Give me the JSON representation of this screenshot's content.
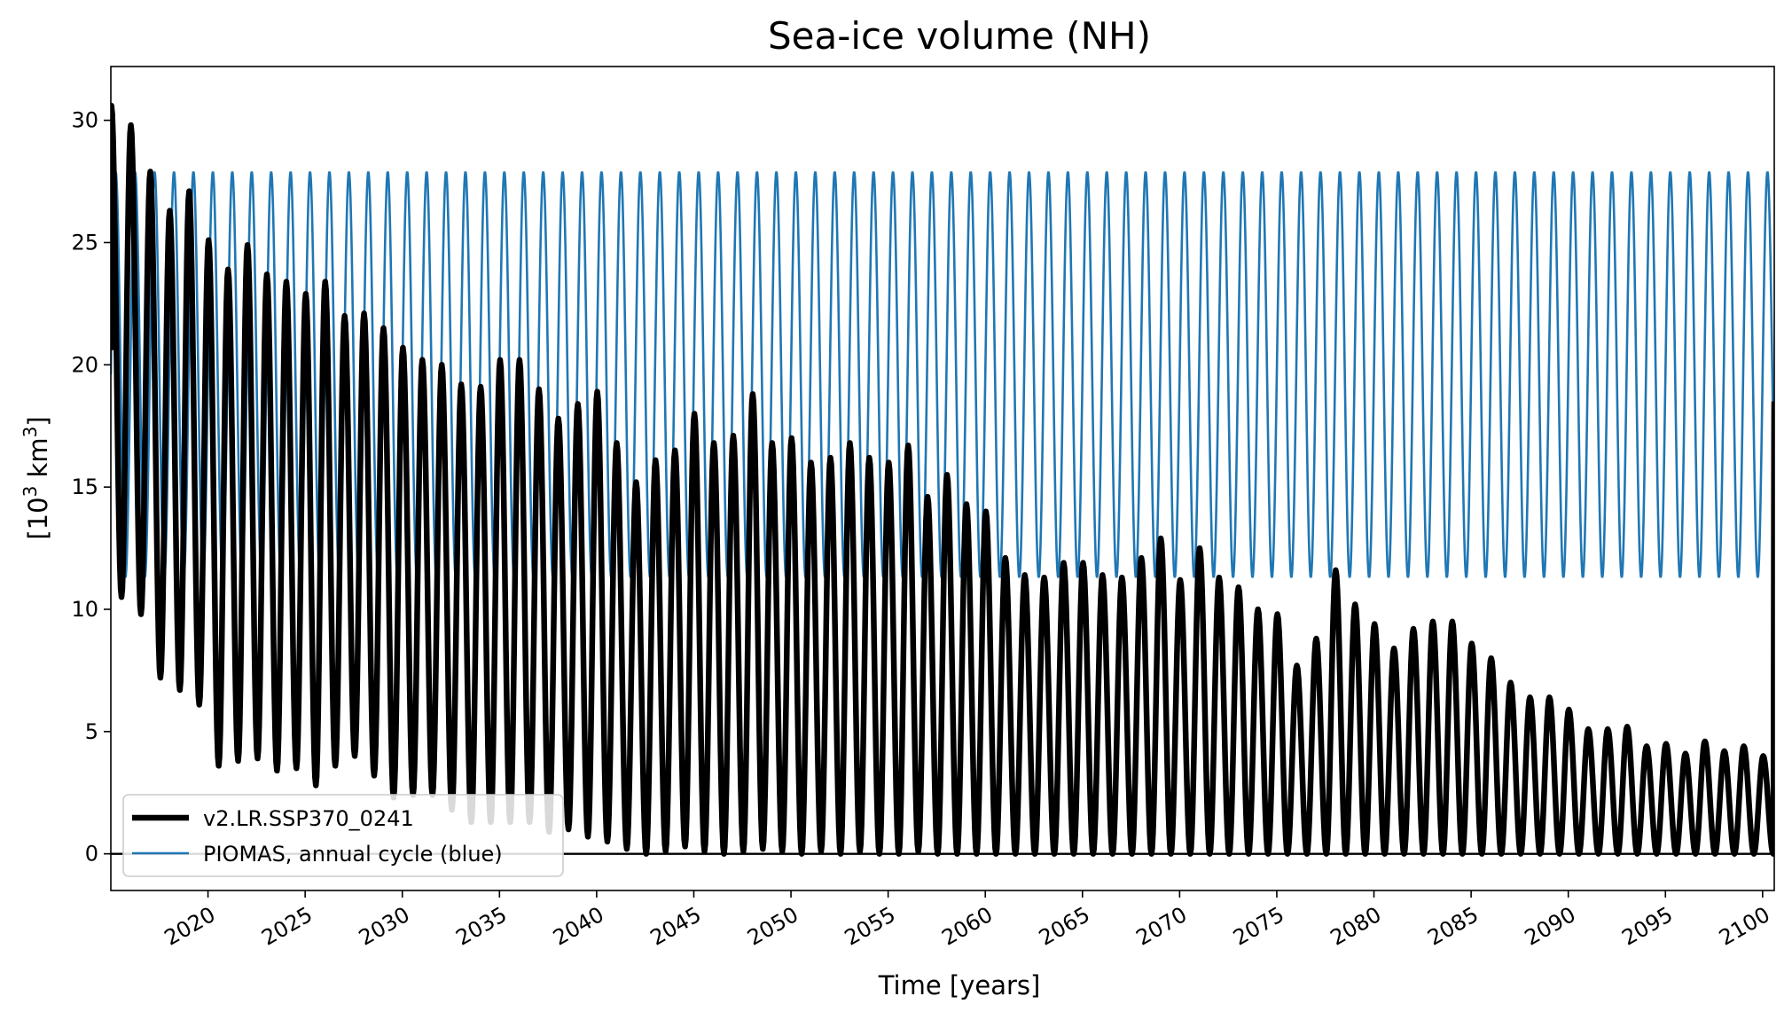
{
  "chart_data": {
    "type": "line",
    "title": "Sea-ice volume (NH)",
    "xlabel": "Time [years]",
    "ylabel_prefix": "[10",
    "ylabel_sup": "3",
    "ylabel_suffix": " km",
    "ylabel_sup2": "3",
    "ylabel_end": "]",
    "xlim": [
      2015.0,
      2100.6
    ],
    "ylim": [
      -1.5,
      32.2
    ],
    "x_ticks": [
      2020,
      2025,
      2030,
      2035,
      2040,
      2045,
      2050,
      2055,
      2060,
      2065,
      2070,
      2075,
      2080,
      2085,
      2090,
      2095,
      2100
    ],
    "x_tick_labels": [
      "2020",
      "2025",
      "2030",
      "2035",
      "2040",
      "2045",
      "2050",
      "2055",
      "2060",
      "2065",
      "2070",
      "2075",
      "2080",
      "2085",
      "2090",
      "2095",
      "2100"
    ],
    "y_ticks": [
      0,
      5,
      10,
      15,
      20,
      25,
      30
    ],
    "y_tick_labels": [
      "0",
      "5",
      "10",
      "15",
      "20",
      "25",
      "30"
    ],
    "grid": false,
    "legend_position": "lower-left",
    "zero_line": true,
    "series": [
      {
        "name": "v2.LR.SSP370_0241",
        "color": "#000000",
        "year_start": 2015,
        "annual_max": [
          30.6,
          29.8,
          27.9,
          26.3,
          27.1,
          25.1,
          23.9,
          24.9,
          23.7,
          23.4,
          22.9,
          23.4,
          22.0,
          22.1,
          21.5,
          20.7,
          20.2,
          20.0,
          19.2,
          19.1,
          20.2,
          20.2,
          19.0,
          17.8,
          18.4,
          18.9,
          16.8,
          15.2,
          16.1,
          16.5,
          18.0,
          16.8,
          17.1,
          18.8,
          16.8,
          17.0,
          16.0,
          16.2,
          16.8,
          16.2,
          16.0,
          16.7,
          14.6,
          15.5,
          14.3,
          14.0,
          12.1,
          11.4,
          11.3,
          11.9,
          11.9,
          11.4,
          11.3,
          12.1,
          12.9,
          11.2,
          12.5,
          11.3,
          10.9,
          10.0,
          9.8,
          7.7,
          8.8,
          11.6,
          10.2,
          9.4,
          8.4,
          9.2,
          9.5,
          9.5,
          8.6,
          8.0,
          7.0,
          6.4,
          6.4,
          5.9,
          5.1,
          5.1,
          5.2,
          4.4,
          4.5,
          4.1,
          4.6,
          4.2,
          4.4,
          4.0
        ],
        "annual_min": [
          10.5,
          9.8,
          7.2,
          6.7,
          6.1,
          3.6,
          3.8,
          3.9,
          3.4,
          3.5,
          2.8,
          3.6,
          4.0,
          3.2,
          2.3,
          2.4,
          2.4,
          1.8,
          1.3,
          1.3,
          1.3,
          1.3,
          0.9,
          1.0,
          0.7,
          0.5,
          0.2,
          0.0,
          0.1,
          0.3,
          0.1,
          0.0,
          0.1,
          0.2,
          0.1,
          0.0,
          0.1,
          0.0,
          0.1,
          0.0,
          0.0,
          0.1,
          0.0,
          0.0,
          0.0,
          0.0,
          0.0,
          0.0,
          0.0,
          0.0,
          0.0,
          0.0,
          0.0,
          0.0,
          0.0,
          0.0,
          0.0,
          0.0,
          0.0,
          0.0,
          0.0,
          0.0,
          0.0,
          0.0,
          0.0,
          0.0,
          0.0,
          0.0,
          0.0,
          0.0,
          0.0,
          0.0,
          0.0,
          0.0,
          0.0,
          0.0,
          0.0,
          0.0,
          0.0,
          0.0,
          0.0,
          0.0,
          0.0,
          0.0,
          0.0,
          0.0
        ]
      },
      {
        "name": "PIOMAS, annual cycle (blue)",
        "color": "#1f77b4",
        "annual_max": 27.9,
        "annual_min": 11.3
      }
    ]
  }
}
